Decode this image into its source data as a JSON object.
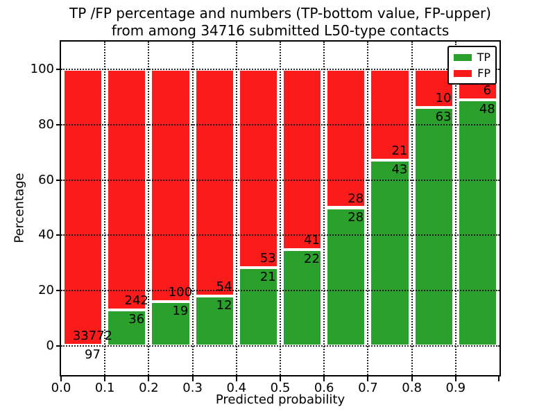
{
  "title": {
    "line1": "TP /FP percentage and numbers (TP-bottom value, FP-upper)",
    "line2": "from among 34716 submitted L50-type contacts"
  },
  "chart_data": {
    "type": "bar",
    "stacked": true,
    "title": "TP /FP percentage and numbers (TP-bottom value, FP-upper)\nfrom among 34716 submitted L50-type contacts",
    "xlabel": "Predicted probability",
    "ylabel": "Percentage",
    "total_submitted_contacts": 34716,
    "bin_edges": [
      0.0,
      0.1,
      0.2,
      0.3,
      0.4,
      0.5,
      0.6,
      0.7,
      0.8,
      0.9,
      1.0
    ],
    "categories": [
      "0.0-0.1",
      "0.1-0.2",
      "0.2-0.3",
      "0.3-0.4",
      "0.4-0.5",
      "0.5-0.6",
      "0.6-0.7",
      "0.7-0.8",
      "0.8-0.9",
      "0.9-1.0"
    ],
    "series": [
      {
        "name": "TP",
        "color": "#2ca02c",
        "counts": [
          97,
          36,
          19,
          12,
          21,
          22,
          28,
          43,
          63,
          48
        ]
      },
      {
        "name": "FP",
        "color": "#fc1b1b",
        "counts": [
          33772,
          242,
          100,
          54,
          53,
          41,
          28,
          21,
          10,
          6
        ]
      }
    ],
    "tp_percent": [
      0.29,
      12.95,
      15.97,
      18.18,
      28.38,
      34.92,
      50.0,
      67.19,
      86.3,
      88.89
    ],
    "x_tick_labels": [
      "0.0",
      "0.1",
      "0.2",
      "0.3",
      "0.4",
      "0.5",
      "0.6",
      "0.7",
      "0.8",
      "0.9"
    ],
    "y_ticks": [
      0,
      20,
      40,
      60,
      80,
      100
    ],
    "xlim": [
      0.0,
      1.0
    ],
    "ylim": [
      -10.5,
      110
    ],
    "grid": {
      "style": "dotted",
      "color": "#000000",
      "x": true,
      "y": true
    },
    "legend": {
      "position": "upper-right",
      "entries": [
        {
          "label": "TP",
          "color": "#2ca02c"
        },
        {
          "label": "FP",
          "color": "#fc1b1b"
        }
      ]
    }
  }
}
